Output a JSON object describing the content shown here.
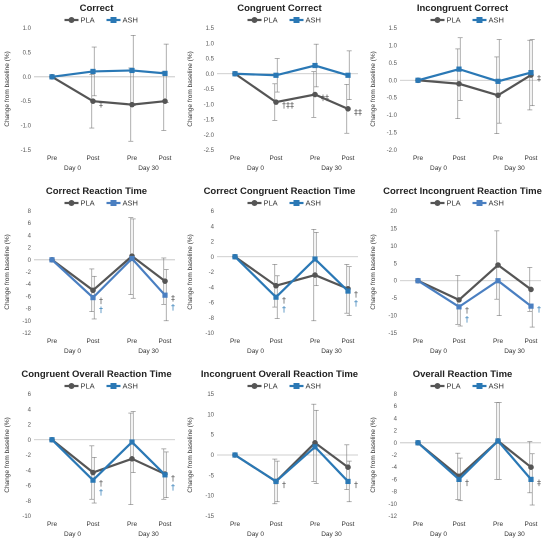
{
  "chart_data": [
    {
      "type": "line",
      "title": "Correct",
      "ylabel": "Change from baseline (%)",
      "categories": [
        "Pre",
        "Post",
        "Pre",
        "Post"
      ],
      "day_labels": [
        "Day 0",
        "Day 30"
      ],
      "ylim": [
        -1.5,
        1.0
      ],
      "ystep": 0.5,
      "ydecimals": 1,
      "series": [
        {
          "name": "PLA",
          "color": "#555555",
          "values": [
            0,
            -0.5,
            -0.57,
            -0.5
          ],
          "err": [
            0,
            0.55,
            0.75,
            0.6
          ],
          "err_side": "both"
        },
        {
          "name": "ASH",
          "color": "#2a78b5",
          "values": [
            0,
            0.11,
            0.13,
            0.07
          ],
          "err": [
            0,
            0.5,
            0.72,
            0.6
          ],
          "err_side": "both"
        }
      ],
      "annotations": [
        {
          "text": "‡",
          "point": 1,
          "color": "#555555"
        }
      ]
    },
    {
      "type": "line",
      "title": "Congruent Correct",
      "ylabel": "Change from baseline (%)",
      "categories": [
        "Pre",
        "Post",
        "Pre",
        "Post"
      ],
      "day_labels": [
        "Day 0",
        "Day 30"
      ],
      "ylim": [
        -2.5,
        1.5
      ],
      "ystep": 0.5,
      "ydecimals": 1,
      "series": [
        {
          "name": "PLA",
          "color": "#555555",
          "values": [
            0,
            -0.93,
            -0.68,
            -1.15
          ],
          "err": [
            0,
            0.6,
            0.75,
            0.8
          ],
          "err_side": "both"
        },
        {
          "name": "ASH",
          "color": "#2a78b5",
          "values": [
            0,
            -0.05,
            0.27,
            -0.05
          ],
          "err": [
            0,
            0.55,
            0.7,
            0.8
          ],
          "err_side": "both"
        }
      ],
      "annotations": [
        {
          "text": "†‡‡",
          "point": 1,
          "color": "#555555"
        },
        {
          "text": "‡‡",
          "point": 2,
          "color": "#555555"
        },
        {
          "text": "‡‡",
          "point": 3,
          "color": "#555555"
        }
      ]
    },
    {
      "type": "line",
      "title": "Incongruent Correct",
      "ylabel": "Change from baseline (%)",
      "categories": [
        "Pre",
        "Post",
        "Pre",
        "Post"
      ],
      "day_labels": [
        "Day 0",
        "Day 30"
      ],
      "ylim": [
        -2.0,
        1.5
      ],
      "ystep": 0.5,
      "ydecimals": 1,
      "series": [
        {
          "name": "PLA",
          "color": "#555555",
          "values": [
            0,
            -0.1,
            -0.43,
            0.15
          ],
          "err": [
            0,
            1.0,
            1.1,
            1.0
          ],
          "err_side": "both"
        },
        {
          "name": "ASH",
          "color": "#2a78b5",
          "values": [
            0,
            0.32,
            -0.03,
            0.22
          ],
          "err": [
            0,
            0.9,
            1.2,
            0.95
          ],
          "err_side": "both"
        }
      ],
      "annotations": [
        {
          "text": "‡",
          "point": 3,
          "color": "#555555"
        }
      ]
    },
    {
      "type": "line",
      "title": "Correct Reaction Time",
      "ylabel": "Change from baseline (%)",
      "categories": [
        "Pre",
        "Post",
        "Pre",
        "Post"
      ],
      "day_labels": [
        "Day 0",
        "Day 30"
      ],
      "ylim": [
        -12,
        8
      ],
      "ystep": 2,
      "ydecimals": 0,
      "series": [
        {
          "name": "PLA",
          "color": "#555555",
          "values": [
            0,
            -5,
            0.6,
            -3.5
          ],
          "err": [
            0,
            3.5,
            6.3,
            3.8
          ],
          "err_side": "both"
        },
        {
          "name": "ASH",
          "color": "#4a7fc1",
          "values": [
            0,
            -6.2,
            0.2,
            -5.8
          ],
          "err": [
            0,
            3.5,
            6.5,
            4.2
          ],
          "err_side": "both"
        }
      ],
      "annotations": [
        {
          "text": "†",
          "point": 1,
          "color": "#555555"
        },
        {
          "text": "†",
          "point": 1,
          "color": "#2a78b5"
        },
        {
          "text": "‡",
          "point": 3,
          "color": "#555555"
        },
        {
          "text": "†",
          "point": 3,
          "color": "#2a78b5"
        }
      ]
    },
    {
      "type": "line",
      "title": "Correct Congruent Reaction Time",
      "ylabel": "Change from baseline (%)",
      "categories": [
        "Pre",
        "Post",
        "Pre",
        "Post"
      ],
      "day_labels": [
        "Day 0",
        "Day 30"
      ],
      "ylim": [
        -10,
        6
      ],
      "ystep": 2,
      "ydecimals": 0,
      "series": [
        {
          "name": "PLA",
          "color": "#555555",
          "values": [
            0,
            -3.8,
            -2.4,
            -4.2
          ],
          "err": [
            0,
            2.8,
            6.0,
            3.2
          ],
          "err_side": "both"
        },
        {
          "name": "ASH",
          "color": "#2a78b5",
          "values": [
            0,
            -5.3,
            -0.3,
            -4.5
          ],
          "err": [
            0,
            2.8,
            3.5,
            3.2
          ],
          "err_side": "both"
        }
      ],
      "annotations": [
        {
          "text": "†",
          "point": 1,
          "color": "#555555"
        },
        {
          "text": "†",
          "point": 1,
          "color": "#2a78b5"
        },
        {
          "text": "†",
          "point": 3,
          "color": "#555555"
        },
        {
          "text": "†",
          "point": 3,
          "color": "#2a78b5"
        }
      ]
    },
    {
      "type": "line",
      "title": "Correct Incongruent Reaction Time",
      "ylabel": "Change from baseline (%)",
      "categories": [
        "Pre",
        "Post",
        "Pre",
        "Post"
      ],
      "day_labels": [
        "Day 0",
        "Day 30"
      ],
      "ylim": [
        -15,
        20
      ],
      "ystep": 5,
      "ydecimals": 0,
      "series": [
        {
          "name": "PLA",
          "color": "#555555",
          "values": [
            0,
            -5.5,
            4.5,
            -2.5
          ],
          "err": [
            0,
            7.0,
            9.8,
            6.3
          ],
          "err_side": "both"
        },
        {
          "name": "ASH",
          "color": "#4a7fc1",
          "values": [
            0,
            -7.5,
            0,
            -7.3
          ],
          "err": [
            0,
            5.5,
            10,
            6.0
          ],
          "err_side": "lower"
        }
      ],
      "annotations": [
        {
          "text": "†",
          "point": 1,
          "color": "#555555"
        },
        {
          "text": "†",
          "point": 1,
          "color": "#2a78b5"
        },
        {
          "text": "†",
          "point": 3,
          "color": "#2a78b5"
        }
      ]
    },
    {
      "type": "line",
      "title": "Congruent Overall Reaction Time",
      "ylabel": "Change from baseline (%)",
      "categories": [
        "Pre",
        "Post",
        "Pre",
        "Post"
      ],
      "day_labels": [
        "Day 0",
        "Day 30"
      ],
      "ylim": [
        -10,
        6
      ],
      "ystep": 2,
      "ydecimals": 0,
      "series": [
        {
          "name": "PLA",
          "color": "#555555",
          "values": [
            0,
            -4.3,
            -2.5,
            -4.5
          ],
          "err": [
            0,
            3.5,
            6.0,
            3.3
          ],
          "err_side": "both"
        },
        {
          "name": "ASH",
          "color": "#2a78b5",
          "values": [
            0,
            -5.3,
            -0.3,
            -4.6
          ],
          "err": [
            0,
            3.0,
            4.0,
            3.0
          ],
          "err_side": "both"
        }
      ],
      "annotations": [
        {
          "text": "†",
          "point": 1,
          "color": "#555555"
        },
        {
          "text": "†",
          "point": 1,
          "color": "#2a78b5"
        },
        {
          "text": "†",
          "point": 3,
          "color": "#555555"
        },
        {
          "text": "†",
          "point": 3,
          "color": "#2a78b5"
        }
      ]
    },
    {
      "type": "line",
      "title": "Incongruent Overall Reaction Time",
      "ylabel": "Change from baseline (%)",
      "categories": [
        "Pre",
        "Post",
        "Pre",
        "Post"
      ],
      "day_labels": [
        "Day 0",
        "Day 30"
      ],
      "ylim": [
        -15,
        15
      ],
      "ystep": 5,
      "ydecimals": 0,
      "series": [
        {
          "name": "PLA",
          "color": "#555555",
          "values": [
            0,
            -6.5,
            3,
            -3
          ],
          "err": [
            0,
            5.5,
            9.5,
            5.5
          ],
          "err_side": "both"
        },
        {
          "name": "ASH",
          "color": "#2a78b5",
          "values": [
            0,
            -6.5,
            2,
            -6.5
          ],
          "err": [
            0,
            5.0,
            9.0,
            5.0
          ],
          "err_side": "both"
        }
      ],
      "annotations": [
        {
          "text": "†",
          "point": 1,
          "color": "#555555"
        },
        {
          "text": "†",
          "point": 3,
          "color": "#555555"
        }
      ]
    },
    {
      "type": "line",
      "title": "Overall Reaction Time",
      "ylabel": "Change from baseline (%)",
      "categories": [
        "Pre",
        "Post",
        "Pre",
        "Post"
      ],
      "day_labels": [
        "Day 0",
        "Day 30"
      ],
      "ylim": [
        -12,
        8
      ],
      "ystep": 2,
      "ydecimals": 0,
      "series": [
        {
          "name": "PLA",
          "color": "#555555",
          "values": [
            0,
            -5.5,
            0.3,
            -4
          ],
          "err": [
            0,
            3.8,
            6.3,
            4.2
          ],
          "err_side": "both"
        },
        {
          "name": "ASH",
          "color": "#2a78b5",
          "values": [
            0,
            -6,
            0.3,
            -6
          ],
          "err": [
            0,
            3.5,
            6.3,
            4.2
          ],
          "err_side": "both"
        }
      ],
      "annotations": [
        {
          "text": "†",
          "point": 1,
          "color": "#555555"
        },
        {
          "text": "‡",
          "point": 3,
          "color": "#555555"
        }
      ]
    }
  ]
}
